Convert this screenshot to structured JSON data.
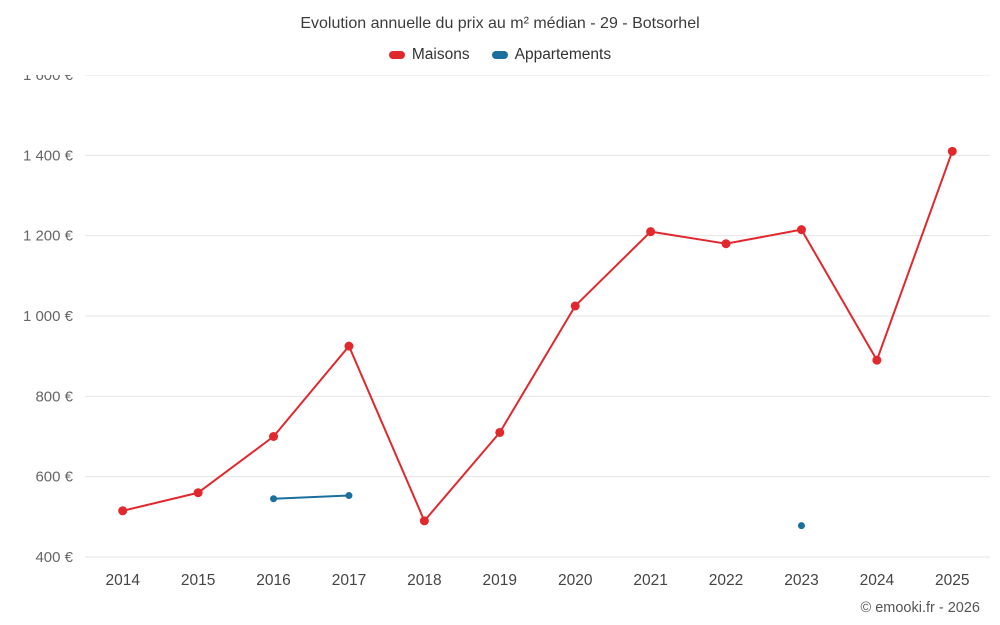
{
  "chart_data": {
    "type": "line",
    "title": "Evolution annuelle du prix au m² médian - 29 - Botsorhel",
    "categories": [
      "2014",
      "2015",
      "2016",
      "2017",
      "2018",
      "2019",
      "2020",
      "2021",
      "2022",
      "2023",
      "2024",
      "2025"
    ],
    "series": [
      {
        "name": "Maisons",
        "color": "#e0282d",
        "marker_radius": 4.5,
        "values": [
          515,
          560,
          700,
          925,
          490,
          710,
          1025,
          1210,
          1180,
          1215,
          890,
          1410
        ]
      },
      {
        "name": "Appartements",
        "color": "#1a6f9c",
        "marker_radius": 3.5,
        "values": [
          null,
          null,
          545,
          553,
          null,
          null,
          null,
          null,
          null,
          478,
          null,
          null
        ]
      }
    ],
    "yticks": [
      {
        "value": 400,
        "label": "400 €"
      },
      {
        "value": 600,
        "label": "600 €"
      },
      {
        "value": 800,
        "label": "800 €"
      },
      {
        "value": 1000,
        "label": "1 000 €"
      },
      {
        "value": 1200,
        "label": "1 200 €"
      },
      {
        "value": 1400,
        "label": "1 400 €"
      },
      {
        "value": 1600,
        "label": "1 600 €"
      }
    ],
    "ylim": [
      400,
      1600
    ],
    "grid": true,
    "legend_position": "top"
  },
  "footer": {
    "text": "© emooki.fr - 2026"
  }
}
